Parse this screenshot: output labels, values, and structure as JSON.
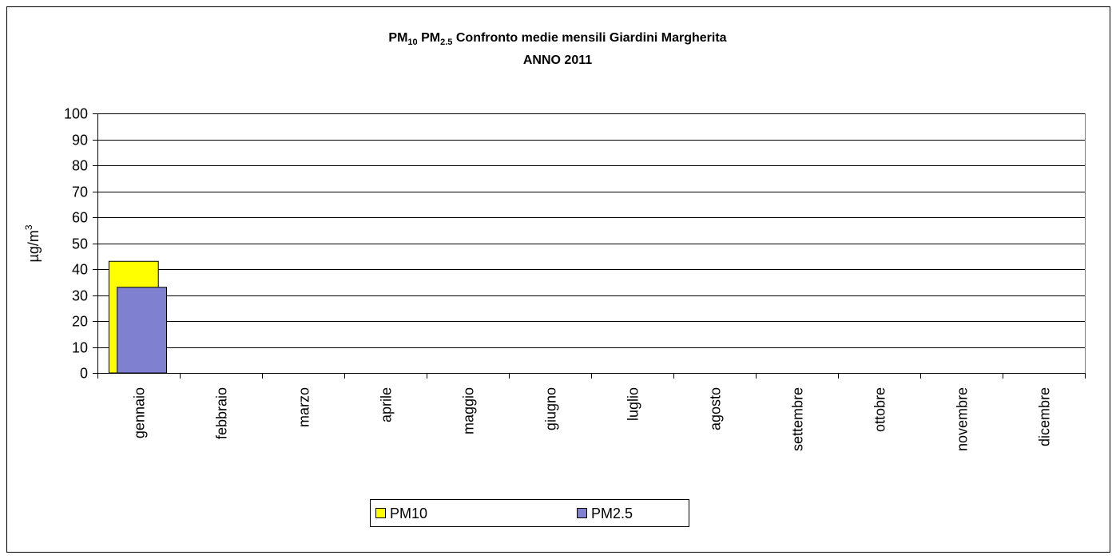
{
  "chart_data": {
    "type": "bar",
    "title": [
      "PM",
      "10",
      " PM",
      "2.5",
      " Confronto medie mensili Giardini Margherita"
    ],
    "subtitle": "ANNO 2011",
    "y_label": [
      "µg/m",
      "3"
    ],
    "categories": [
      "gennaio",
      "febbraio",
      "marzo",
      "aprile",
      "maggio",
      "giugno",
      "luglio",
      "agosto",
      "settembre",
      "ottobre",
      "novembre",
      "dicembre"
    ],
    "series": [
      {
        "name": "PM10",
        "color": "#ffff00",
        "values": [
          43,
          null,
          null,
          null,
          null,
          null,
          null,
          null,
          null,
          null,
          null,
          null
        ]
      },
      {
        "name": "PM2.5",
        "color": "#8080d0",
        "values": [
          33,
          null,
          null,
          null,
          null,
          null,
          null,
          null,
          null,
          null,
          null,
          null
        ]
      }
    ],
    "ylim": [
      0,
      100
    ],
    "yticks": [
      0,
      10,
      20,
      30,
      40,
      50,
      60,
      70,
      80,
      90,
      100
    ],
    "grid": true,
    "legend": "bottom"
  }
}
